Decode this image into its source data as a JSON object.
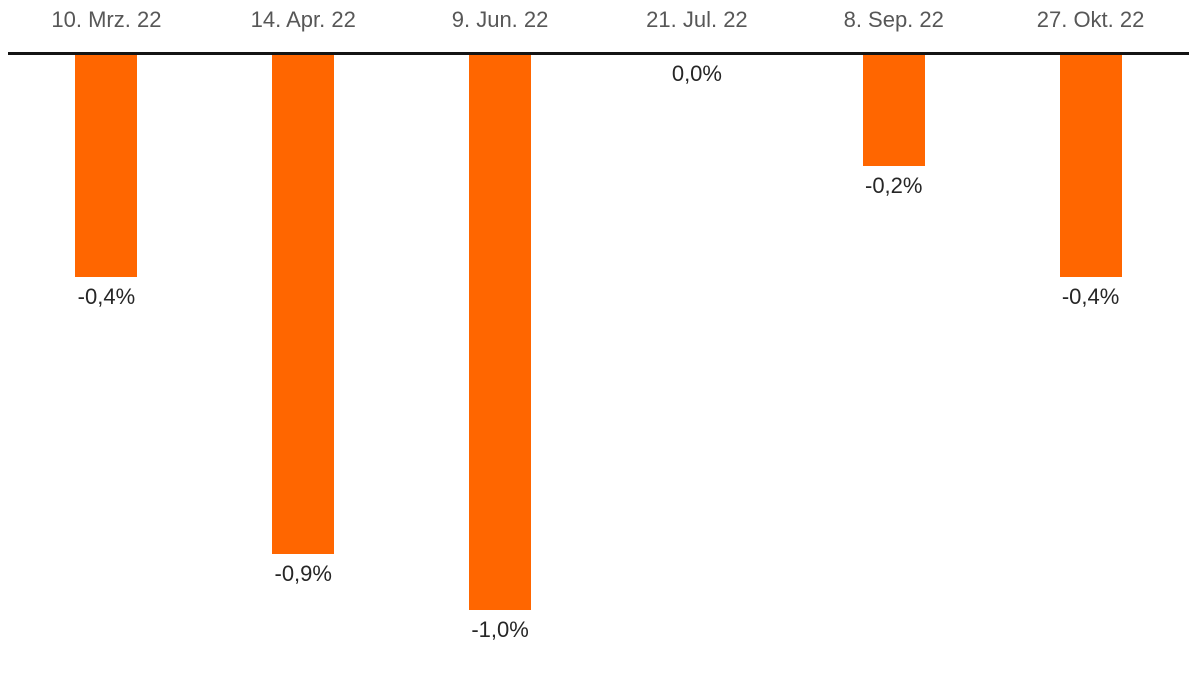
{
  "chart_data": {
    "type": "bar",
    "orientation": "vertical",
    "direction": "negative-down-from-top-axis",
    "title": "",
    "xlabel": "",
    "ylabel": "",
    "categories": [
      "10. Mrz. 22",
      "14. Apr. 22",
      "9. Jun. 22",
      "21. Jul. 22",
      "8. Sep. 22",
      "27. Okt. 22"
    ],
    "values": [
      -0.4,
      -0.9,
      -1.0,
      0.0,
      -0.2,
      -0.4
    ],
    "value_labels": [
      "-0,4%",
      "-0,9%",
      "-1,0%",
      "0,0%",
      "-0,2%",
      "-0,4%"
    ],
    "unit": "%",
    "ylim": [
      -1.05,
      0
    ],
    "grid": false,
    "legend": false,
    "colors": {
      "bar": "#ff6600",
      "axis": "#141414",
      "tick_label": "#575757",
      "value_label": "#262626",
      "background": "#ffffff"
    }
  }
}
